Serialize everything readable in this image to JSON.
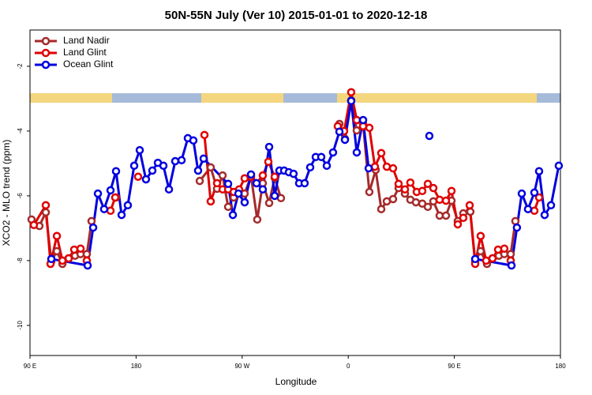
{
  "chart_data": {
    "type": "line",
    "title": "50N-55N July (Ver 10)   2015-01-01 to 2020-12-18",
    "x_label": "Longitude",
    "y_label": "XCO2 - MLO trend (ppm)",
    "xlim": [
      90,
      540
    ],
    "xticks": [
      {
        "value": 90,
        "label": "90 E"
      },
      {
        "value": 180,
        "label": "180"
      },
      {
        "value": 270,
        "label": "90 W"
      },
      {
        "value": 360,
        "label": "0"
      },
      {
        "value": 450,
        "label": "90 E"
      },
      {
        "value": 540,
        "label": "180"
      }
    ],
    "ylim": [
      -10.93,
      -0.88
    ],
    "yticks": [
      -2,
      -4,
      -6,
      -8,
      -10
    ],
    "legend": "top-left",
    "series": [
      {
        "name": "Land Nadir",
        "color": "#a52a2a",
        "x": [
          91.3,
          98.0,
          103.4,
          108.1,
          112.8,
          117.5,
          122.8,
          128.2,
          132.9,
          138.2,
          142.2,
          null,
          163.0,
          null,
          234.0,
          243.3,
          248.7,
          253.4,
          258.1,
          262.8,
          267.4,
          272.1,
          277.5,
          282.8,
          287.5,
          292.9,
          297.6,
          302.9,
          null,
          352.5,
          357.2,
          362.5,
          367.2,
          372.6,
          377.9,
          383.3,
          388.0,
          392.7,
          398.0,
          402.7,
          408.1,
          412.7,
          417.4,
          422.8,
          427.5,
          432.2,
          437.5,
          442.9,
          447.6,
          452.9,
          457.6,
          463.6,
          467.7,
          472.3,
          477.7,
          482.4,
          487.7,
          492.4,
          497.8,
          501.8
        ],
        "values": [
          -6.73,
          -6.93,
          -6.51,
          -8.02,
          -7.71,
          -8.1,
          -7.93,
          -7.85,
          -7.8,
          -7.8,
          -6.78,
          null,
          -6.05,
          null,
          -5.54,
          -5.12,
          -5.78,
          -5.37,
          -6.34,
          -6.05,
          -5.88,
          -5.93,
          -5.39,
          -6.73,
          -5.61,
          -6.22,
          -5.44,
          -6.07,
          null,
          -3.78,
          -4.24,
          -3.05,
          -3.98,
          -3.78,
          -5.88,
          -5.2,
          -6.41,
          -6.17,
          -6.1,
          -5.76,
          -5.93,
          -6.12,
          -6.2,
          -6.24,
          -6.34,
          -6.17,
          -6.61,
          -6.61,
          -6.15,
          -6.78,
          -6.54,
          -6.49,
          -8.02,
          -7.71,
          -8.1,
          -7.93,
          -7.85,
          -7.8,
          -7.8,
          -6.78
        ]
      },
      {
        "name": "Land Glint",
        "color": "#e00000",
        "x": [
          93.3,
          103.4,
          107.4,
          112.8,
          117.5,
          122.8,
          127.5,
          132.9,
          138.2,
          null,
          158.3,
          162.3,
          null,
          181.7,
          null,
          238.0,
          243.3,
          248.7,
          253.4,
          258.1,
          262.8,
          267.4,
          272.1,
          277.5,
          282.2,
          287.5,
          292.2,
          297.6,
          null,
          351.1,
          356.5,
          362.5,
          367.2,
          372.6,
          377.9,
          382.6,
          388.0,
          392.7,
          398.0,
          402.7,
          408.1,
          412.7,
          418.1,
          422.8,
          427.5,
          432.2,
          437.5,
          442.9,
          447.6,
          452.9,
          457.6,
          463.0,
          467.7,
          472.3,
          477.0,
          482.4,
          487.1,
          492.4,
          497.8,
          null,
          517.9,
          521.9
        ],
        "values": [
          -6.9,
          -6.29,
          -8.1,
          -7.24,
          -8.0,
          -7.93,
          -7.66,
          -7.63,
          -8.0,
          null,
          -6.46,
          -6.05,
          null,
          -5.41,
          null,
          -4.12,
          -6.17,
          -5.61,
          -5.8,
          -5.8,
          -5.88,
          -5.8,
          -5.46,
          -5.41,
          -5.61,
          -5.37,
          -4.95,
          -5.41,
          null,
          -3.85,
          -4.0,
          -2.8,
          -3.66,
          -3.85,
          -3.9,
          -5.1,
          -4.68,
          -5.1,
          -5.15,
          -5.63,
          -5.8,
          -5.59,
          -5.88,
          -5.85,
          -5.63,
          -5.76,
          -6.12,
          -6.15,
          -5.85,
          -6.88,
          -6.68,
          -6.29,
          -8.1,
          -7.24,
          -8.0,
          -7.93,
          -7.66,
          -7.63,
          -8.0,
          null,
          -6.46,
          -6.05
        ]
      },
      {
        "name": "Ocean Glint",
        "color": "#0000e0",
        "x": [
          108.1,
          138.9,
          143.6,
          147.6,
          152.9,
          158.3,
          163.0,
          167.7,
          173.0,
          178.4,
          183.1,
          188.4,
          193.8,
          198.5,
          203.2,
          207.9,
          213.2,
          218.6,
          223.9,
          228.6,
          232.6,
          237.3,
          258.1,
          262.1,
          266.8,
          272.1,
          277.5,
          282.2,
          287.5,
          292.9,
          297.6,
          301.6,
          305.6,
          309.6,
          313.6,
          318.3,
          323.0,
          327.7,
          332.4,
          337.1,
          341.8,
          347.1,
          352.5,
          357.2,
          362.5,
          367.2,
          372.6,
          377.3,
          null,
          428.8,
          null,
          467.7,
          498.5,
          503.1,
          507.2,
          512.5,
          517.9,
          521.9,
          526.6,
          532.0,
          538.6
        ],
        "values": [
          -7.95,
          -8.15,
          -6.98,
          -5.93,
          -6.41,
          -5.83,
          -5.24,
          -6.59,
          -6.29,
          -5.07,
          -4.59,
          -5.49,
          -5.22,
          -4.98,
          -5.07,
          -5.8,
          -4.93,
          -4.9,
          -4.22,
          -4.29,
          -5.22,
          -4.85,
          -5.63,
          -6.59,
          -5.93,
          -6.2,
          -5.34,
          -5.61,
          -5.8,
          -4.49,
          -6.0,
          -5.22,
          -5.22,
          -5.27,
          -5.32,
          -5.61,
          -5.61,
          -5.12,
          -4.8,
          -4.8,
          -5.07,
          -4.66,
          -4.02,
          -4.27,
          -3.07,
          -4.66,
          -3.66,
          -5.15,
          null,
          -4.15,
          null,
          -7.95,
          -8.15,
          -6.98,
          -5.93,
          -6.41,
          -5.9,
          -5.24,
          -6.59,
          -6.29,
          -5.07
        ]
      }
    ]
  }
}
